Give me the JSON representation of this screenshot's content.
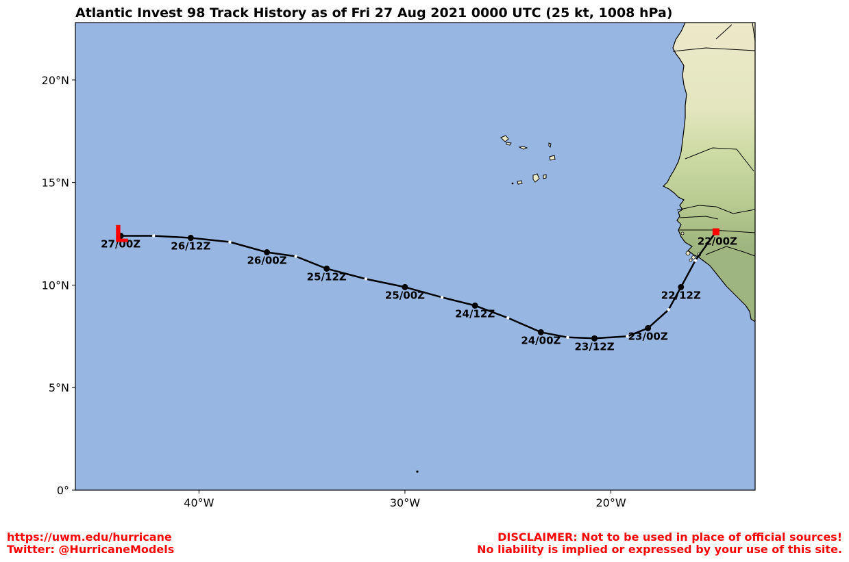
{
  "title": "Atlantic Invest 98 Track History as of Fri 27 Aug 2021 0000 UTC (25 kt, 1008 hPa)",
  "map": {
    "lon_range": [
      -46,
      -13
    ],
    "lat_range": [
      0,
      22.8
    ],
    "lat_ticks": [
      {
        "value": 0,
        "label": "0°"
      },
      {
        "value": 5,
        "label": "5°N"
      },
      {
        "value": 10,
        "label": "10°N"
      },
      {
        "value": 15,
        "label": "15°N"
      },
      {
        "value": 20,
        "label": "20°N"
      }
    ],
    "lon_ticks": [
      {
        "value": -40,
        "label": "40°W"
      },
      {
        "value": -30,
        "label": "30°W"
      },
      {
        "value": -20,
        "label": "20°W"
      }
    ],
    "colors": {
      "ocean": "#98b6e2",
      "land_desert": "#ece9c9",
      "land_green": "#c3d49a",
      "land_dark": "#9fb57f",
      "track": "#000000",
      "marker": "#ff0000"
    }
  },
  "track": {
    "points": [
      {
        "lon": -14.9,
        "lat": 12.6
      },
      {
        "lon": -15.4,
        "lat": 11.9
      },
      {
        "lon": -15.9,
        "lat": 11.2
      },
      {
        "lon": -16.6,
        "lat": 9.9
      },
      {
        "lon": -17.2,
        "lat": 8.8
      },
      {
        "lon": -18.2,
        "lat": 7.9
      },
      {
        "lon": -19.2,
        "lat": 7.5
      },
      {
        "lon": -20.8,
        "lat": 7.4
      },
      {
        "lon": -22.1,
        "lat": 7.45
      },
      {
        "lon": -23.4,
        "lat": 7.7
      },
      {
        "lon": -25.0,
        "lat": 8.4
      },
      {
        "lon": -26.6,
        "lat": 9.0
      },
      {
        "lon": -28.2,
        "lat": 9.4
      },
      {
        "lon": -30.0,
        "lat": 9.9
      },
      {
        "lon": -31.9,
        "lat": 10.3
      },
      {
        "lon": -33.8,
        "lat": 10.8
      },
      {
        "lon": -35.3,
        "lat": 11.4
      },
      {
        "lon": -36.7,
        "lat": 11.6
      },
      {
        "lon": -38.5,
        "lat": 12.1
      },
      {
        "lon": -40.4,
        "lat": 12.3
      },
      {
        "lon": -42.2,
        "lat": 12.4
      },
      {
        "lon": -43.8,
        "lat": 12.4
      }
    ],
    "labeled_points": [
      {
        "lon": -16.6,
        "lat": 9.9,
        "label": "22/12Z"
      },
      {
        "lon": -18.2,
        "lat": 7.9,
        "label": "23/00Z"
      },
      {
        "lon": -20.8,
        "lat": 7.4,
        "label": "23/12Z"
      },
      {
        "lon": -23.4,
        "lat": 7.7,
        "label": "24/00Z"
      },
      {
        "lon": -26.6,
        "lat": 9.0,
        "label": "24/12Z"
      },
      {
        "lon": -30.0,
        "lat": 9.9,
        "label": "25/00Z"
      },
      {
        "lon": -33.8,
        "lat": 10.8,
        "label": "25/12Z"
      },
      {
        "lon": -36.7,
        "lat": 11.6,
        "label": "26/00Z"
      },
      {
        "lon": -40.4,
        "lat": 12.3,
        "label": "26/12Z"
      },
      {
        "lon": -43.8,
        "lat": 12.4,
        "label": "27/00Z"
      }
    ],
    "intermediate_points": [
      {
        "lon": -15.9,
        "lat": 11.2
      },
      {
        "lon": -17.2,
        "lat": 8.8
      },
      {
        "lon": -19.2,
        "lat": 7.5
      },
      {
        "lon": -22.1,
        "lat": 7.45
      },
      {
        "lon": -25.0,
        "lat": 8.4
      },
      {
        "lon": -28.2,
        "lat": 9.4
      },
      {
        "lon": -31.9,
        "lat": 10.3
      },
      {
        "lon": -35.3,
        "lat": 11.4
      },
      {
        "lon": -38.5,
        "lat": 12.1
      },
      {
        "lon": -42.2,
        "lat": 12.4
      }
    ],
    "start": {
      "lon": -14.9,
      "lat": 12.6,
      "label": "22/00Z"
    },
    "current": {
      "lon": -43.8,
      "lat": 12.4,
      "symbol": "L"
    }
  },
  "footer": {
    "left_line1": "https://uwm.edu/hurricane",
    "left_line2": "Twitter: @HurricaneModels",
    "right_line1": "DISCLAIMER: Not to be used in place of official sources!",
    "right_line2": "No liability is implied or expressed by your use of this site."
  }
}
